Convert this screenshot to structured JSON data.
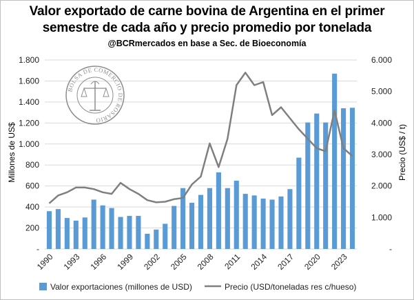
{
  "title_line1": "Valor exportado de carne bovina de Argentina en el primer",
  "title_line2": "semestre de cada año y precio promedio por tonelada",
  "subtitle": "@BCRmercados en base a Sec. de Bioeconomía",
  "logo_text": "BOLSA DE COMERCIO DE ROSARIO",
  "colors": {
    "bars": "#5b9bd5",
    "line": "#7f7f7f",
    "grid": "#d9d9d9"
  },
  "chart_data": {
    "type": "bar+line",
    "x": [
      1990,
      1991,
      1992,
      1993,
      1994,
      1995,
      1996,
      1997,
      1998,
      1999,
      2000,
      2001,
      2002,
      2003,
      2004,
      2005,
      2006,
      2007,
      2008,
      2009,
      2010,
      2011,
      2012,
      2013,
      2014,
      2015,
      2016,
      2017,
      2018,
      2019,
      2020,
      2021,
      2022,
      2023,
      2024
    ],
    "x_tick_labels": [
      "1990",
      "1993",
      "1996",
      "1999",
      "2002",
      "2005",
      "2008",
      "2011",
      "2014",
      "2017",
      "2020",
      "2023"
    ],
    "series": [
      {
        "name": "Valor exportaciones (millones de USD)",
        "type": "bar",
        "axis": "left",
        "values": [
          360,
          380,
          295,
          270,
          300,
          470,
          415,
          390,
          305,
          315,
          315,
          145,
          185,
          240,
          410,
          580,
          440,
          515,
          580,
          730,
          580,
          650,
          525,
          510,
          480,
          470,
          500,
          570,
          870,
          1205,
          1290,
          1205,
          1670,
          1340,
          1345
        ]
      },
      {
        "name": "Precio (USD/toneladas res c/hueso)",
        "type": "line",
        "axis": "right",
        "values": [
          1450,
          1700,
          1800,
          1950,
          1950,
          1900,
          1800,
          1750,
          2100,
          1900,
          1750,
          1550,
          1480,
          1500,
          1580,
          1620,
          2050,
          2300,
          3350,
          2600,
          3500,
          5200,
          5600,
          5200,
          5300,
          4250,
          4500,
          4150,
          3800,
          3500,
          3200,
          3100,
          4400,
          3200,
          2950
        ]
      }
    ],
    "y_left": {
      "label": "Millones de US$",
      "ylim": [
        0,
        1800
      ],
      "ticks": [
        0,
        200,
        400,
        600,
        800,
        1000,
        1200,
        1400,
        1600,
        1800
      ],
      "tick_labels": [
        "-",
        "200",
        "400",
        "600",
        "800",
        "1.000",
        "1.200",
        "1.400",
        "1.600",
        "1.800"
      ]
    },
    "y_right": {
      "label": "Precio (US$ / t)",
      "ylim": [
        0,
        6000
      ],
      "ticks": [
        0,
        1000,
        2000,
        3000,
        4000,
        5000,
        6000
      ],
      "tick_labels": [
        "-",
        "1.000",
        "2.000",
        "3.000",
        "4.000",
        "5.000",
        "6.000"
      ]
    },
    "grid": true,
    "legend": "bottom"
  }
}
